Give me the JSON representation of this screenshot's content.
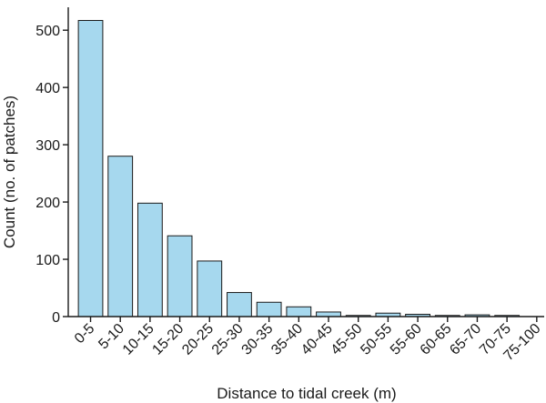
{
  "chart_data": {
    "type": "bar",
    "categories": [
      "0-5",
      "5-10",
      "10-15",
      "15-20",
      "20-25",
      "25-30",
      "30-35",
      "35-40",
      "40-45",
      "45-50",
      "50-55",
      "55-60",
      "60-65",
      "65-70",
      "70-75",
      "75-100"
    ],
    "values": [
      517,
      280,
      198,
      141,
      97,
      42,
      25,
      17,
      8,
      2,
      6,
      4,
      2,
      3,
      2,
      0
    ],
    "xlabel": "Distance to tidal creek (m)",
    "ylabel": "Count (no. of patches)",
    "ylim": [
      0,
      540
    ],
    "yticks": [
      0,
      100,
      200,
      300,
      400,
      500
    ],
    "grid": false,
    "legend": "none",
    "colors": {
      "bar_fill": "#a6d8ee",
      "bar_stroke": "#1a1a1a",
      "axis": "#1a1a1a"
    }
  }
}
